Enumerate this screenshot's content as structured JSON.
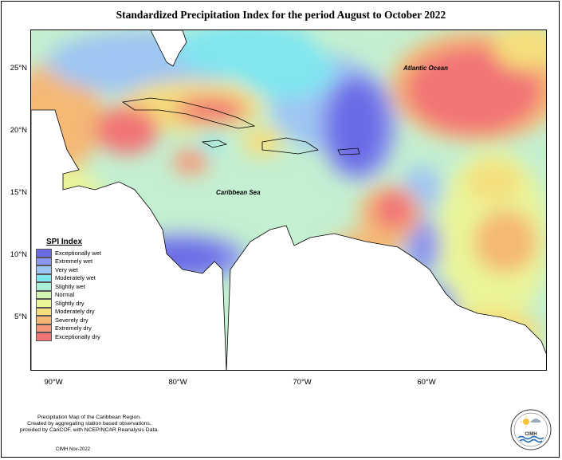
{
  "title": "Standardized Precipitation Index for the period August to October 2022",
  "map": {
    "latitude_labels": [
      "25°N",
      "20°N",
      "15°N",
      "10°N",
      "5°N"
    ],
    "longitude_labels": [
      "90°W",
      "80°W",
      "70°W",
      "60°W"
    ],
    "places": {
      "atlantic": "Atlantic Ocean",
      "caribbean": "Caribbean Sea"
    }
  },
  "legend": {
    "title": "SPI Index",
    "items": [
      {
        "label": "Exceptionally wet",
        "color": "#6b6be6"
      },
      {
        "label": "Extremely wet",
        "color": "#8c96ee"
      },
      {
        "label": "Very wet",
        "color": "#9ec6f2"
      },
      {
        "label": "Moderately wet",
        "color": "#80e6f0"
      },
      {
        "label": "Slightly wet",
        "color": "#aaf0d6"
      },
      {
        "label": "Normal",
        "color": "#d2f5b4"
      },
      {
        "label": "Slightly dry",
        "color": "#eaf59a"
      },
      {
        "label": "Moderately dry",
        "color": "#f5de7c"
      },
      {
        "label": "Severely dry",
        "color": "#f5b874"
      },
      {
        "label": "Extremely dry",
        "color": "#f59878"
      },
      {
        "label": "Exceptionally dry",
        "color": "#f27476"
      }
    ]
  },
  "credits": {
    "line1": "Precipitation Map of the Caribbean Region.",
    "line2": "Created by aggregating station based observations,",
    "line3": "provided by CariCOF, with NCEP/NCAR Reanalysis Data.",
    "date": "CIMH Nov-2022"
  },
  "logo": {
    "text": "CIMH",
    "icon": "sun-and-waves-icon"
  }
}
